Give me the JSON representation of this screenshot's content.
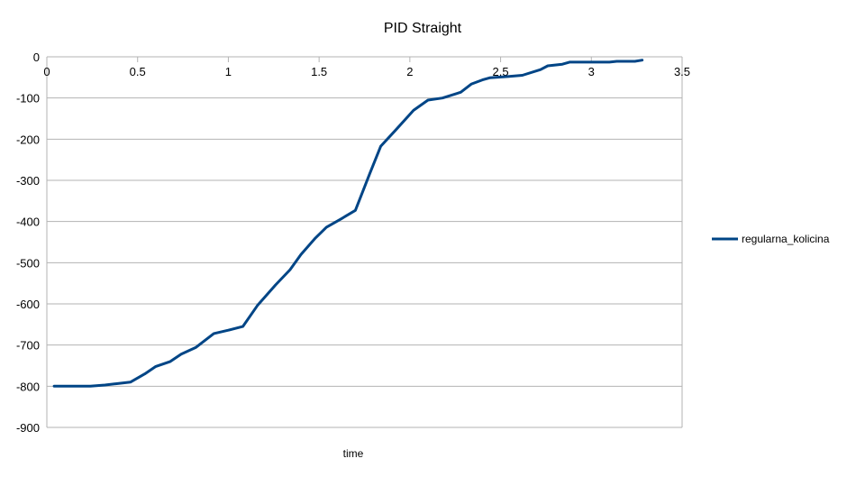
{
  "chart_data": {
    "type": "line",
    "title": "PID Straight",
    "xlabel": "time",
    "ylabel": "",
    "xlim": [
      0,
      3.5
    ],
    "ylim": [
      -900,
      0
    ],
    "x_ticks": [
      0,
      0.5,
      1,
      1.5,
      2,
      2.5,
      3,
      3.5
    ],
    "x_tick_labels": [
      "0",
      "0.5",
      "1",
      "1.5",
      "2",
      "2.5",
      "3",
      "3.5"
    ],
    "y_ticks": [
      0,
      -100,
      -200,
      -300,
      -400,
      -500,
      -600,
      -700,
      -800,
      -900
    ],
    "y_tick_labels": [
      "0",
      "-100",
      "-200",
      "-300",
      "-400",
      "-500",
      "-600",
      "-700",
      "-800",
      "-900"
    ],
    "grid": true,
    "legend_position": "right",
    "series": [
      {
        "name": "regularna_kolicina",
        "color": "#004586",
        "x": [
          0.04,
          0.24,
          0.32,
          0.38,
          0.46,
          0.54,
          0.6,
          0.68,
          0.74,
          0.82,
          0.92,
          1.0,
          1.08,
          1.16,
          1.26,
          1.34,
          1.4,
          1.48,
          1.54,
          1.62,
          1.7,
          1.78,
          1.84,
          1.92,
          2.02,
          2.1,
          2.18,
          2.28,
          2.34,
          2.4,
          2.44,
          2.54,
          2.62,
          2.72,
          2.76,
          2.84,
          2.88,
          2.94,
          3.1,
          3.14,
          3.24,
          3.28
        ],
        "y": [
          -800,
          -800,
          -797,
          -794,
          -790,
          -770,
          -752,
          -740,
          -722,
          -706,
          -672,
          -664,
          -655,
          -604,
          -554,
          -517,
          -480,
          -440,
          -414,
          -394,
          -373,
          -283,
          -217,
          -179,
          -130,
          -105,
          -100,
          -86,
          -66,
          -56,
          -51,
          -48,
          -45,
          -31,
          -22,
          -18,
          -13,
          -13,
          -13,
          -11,
          -11,
          -8
        ]
      }
    ]
  }
}
